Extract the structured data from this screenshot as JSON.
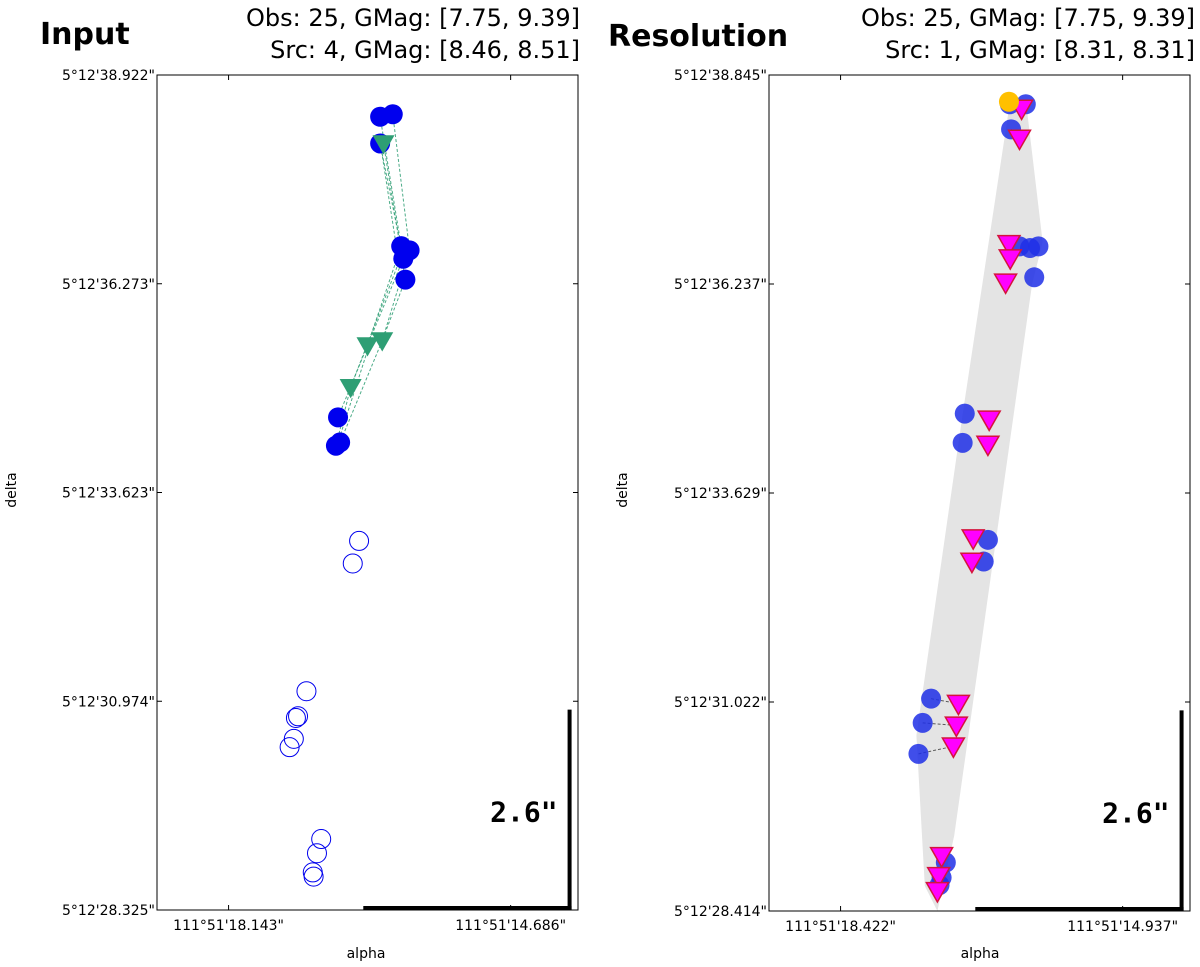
{
  "chart_data": [
    {
      "type": "scatter",
      "title": "Input",
      "header": [
        "Obs: 25, GMag: [7.75, 9.39]",
        "Src: 4, GMag: [8.46, 8.51]"
      ],
      "xlabel": "alpha",
      "ylabel": "delta",
      "xlim": [
        0,
        100
      ],
      "ylim": [
        0,
        100
      ],
      "x_tick_labels": [
        "111°51'18.143\"",
        "111°51'14.686\""
      ],
      "x_tick_values": [
        17,
        84
      ],
      "y_tick_labels": [
        "5°12'38.922\"",
        "5°12'36.273\"",
        "5°12'33.623\"",
        "5°12'30.974\"",
        "5°12'28.325\""
      ],
      "y_tick_values": [
        100,
        75,
        50,
        25,
        0
      ],
      "scale_label": "2.6\"",
      "scale_bar": {
        "x0": 49,
        "x1": 98,
        "y0": 0,
        "y1": 24
      },
      "shaded_region": null,
      "series": [
        {
          "name": "observations (filled)",
          "marker": "circle",
          "filled": true,
          "color": "#0000ee",
          "points": [
            [
              53,
              95
            ],
            [
              56,
              95.3
            ],
            [
              53,
              91.8
            ],
            [
              58,
              79.5
            ],
            [
              60,
              79
            ],
            [
              58.5,
              78
            ],
            [
              59,
              75.5
            ],
            [
              43,
              59
            ],
            [
              43.5,
              56
            ],
            [
              42.5,
              55.6
            ]
          ]
        },
        {
          "name": "observations (open)",
          "marker": "circle",
          "filled": false,
          "color": "#0000ee",
          "points": [
            [
              48,
              44.2
            ],
            [
              46.5,
              41.5
            ],
            [
              35.5,
              26.2
            ],
            [
              33.5,
              23.2
            ],
            [
              33,
              23
            ],
            [
              32.5,
              20.5
            ],
            [
              31.5,
              19.5
            ],
            [
              39,
              8.5
            ],
            [
              38,
              6.8
            ],
            [
              37,
              4.5
            ],
            [
              37.2,
              4
            ]
          ]
        },
        {
          "name": "sources",
          "marker": "triangle-down",
          "filled": true,
          "color": "#2e9e74",
          "points": [
            [
              53.8,
              91.8
            ],
            [
              50,
              67.6
            ],
            [
              53.5,
              68.2
            ],
            [
              46,
              62.6
            ]
          ]
        }
      ],
      "links": [
        {
          "from": [
            53,
            95
          ],
          "to": [
            58,
            79.5
          ]
        },
        {
          "from": [
            56,
            95.3
          ],
          "to": [
            60,
            79
          ]
        },
        {
          "from": [
            53,
            91.8
          ],
          "to": [
            58.5,
            78
          ]
        },
        {
          "from": [
            53.8,
            91.8
          ],
          "to": [
            59,
            75.5
          ]
        },
        {
          "from": [
            53,
            92
          ],
          "to": [
            57,
            79
          ]
        },
        {
          "from": [
            58,
            79.5
          ],
          "to": [
            50,
            67.6
          ]
        },
        {
          "from": [
            60,
            79
          ],
          "to": [
            53.5,
            68.2
          ]
        },
        {
          "from": [
            59,
            75.5
          ],
          "to": [
            53.5,
            68.2
          ]
        },
        {
          "from": [
            58.5,
            78
          ],
          "to": [
            50,
            67.6
          ]
        },
        {
          "from": [
            57,
            77
          ],
          "to": [
            46,
            62.6
          ]
        },
        {
          "from": [
            50,
            67.6
          ],
          "to": [
            43,
            59
          ]
        },
        {
          "from": [
            53.5,
            68.2
          ],
          "to": [
            43.5,
            56
          ]
        },
        {
          "from": [
            46,
            62.6
          ],
          "to": [
            42.5,
            55.6
          ]
        },
        {
          "from": [
            50,
            67
          ],
          "to": [
            43,
            56
          ]
        }
      ]
    },
    {
      "type": "scatter",
      "title": "Resolution",
      "header": [
        "Obs: 25, GMag: [7.75, 9.39]",
        "Src: 1, GMag: [8.31, 8.31]"
      ],
      "xlabel": "alpha",
      "ylabel": "delta",
      "xlim": [
        0,
        100
      ],
      "ylim": [
        0,
        100
      ],
      "x_tick_labels": [
        "111°51'18.422\"",
        "111°51'14.937\""
      ],
      "x_tick_values": [
        17,
        84
      ],
      "y_tick_labels": [
        "5°12'38.845\"",
        "5°12'36.237\"",
        "5°12'33.629\"",
        "5°12'31.022\"",
        "5°12'28.414\""
      ],
      "y_tick_values": [
        100,
        75,
        50,
        25,
        0
      ],
      "scale_label": "2.6\"",
      "scale_bar": {
        "x0": 49,
        "x1": 98,
        "y0": 0,
        "y1": 24
      },
      "shaded_region": [
        [
          57,
          96
        ],
        [
          61,
          97
        ],
        [
          65,
          80
        ],
        [
          62.5,
          75
        ],
        [
          44,
          9
        ],
        [
          40,
          0
        ],
        [
          37,
          3
        ],
        [
          35,
          21
        ],
        [
          46,
          59.5
        ]
      ],
      "series": [
        {
          "name": "observations",
          "marker": "circle",
          "filled": true,
          "color": "#1f2fe6",
          "points": [
            [
              57.2,
              96.5
            ],
            [
              61,
              96.5
            ],
            [
              57.5,
              93.5
            ],
            [
              59.5,
              79.5
            ],
            [
              62,
              79.3
            ],
            [
              64,
              79.5
            ],
            [
              63,
              75.8
            ],
            [
              46.5,
              59.5
            ],
            [
              46,
              56
            ],
            [
              52,
              44.4
            ],
            [
              51,
              41.8
            ],
            [
              38.5,
              25.4
            ],
            [
              36.5,
              22.5
            ],
            [
              35.5,
              18.8
            ],
            [
              42,
              5.8
            ],
            [
              41,
              4
            ],
            [
              40.5,
              3.1
            ]
          ]
        },
        {
          "name": "sources",
          "marker": "triangle-down",
          "filled": true,
          "color": "#ff00ff",
          "points": [
            [
              60,
              96
            ],
            [
              59.5,
              92.4
            ],
            [
              57,
              79.8
            ],
            [
              57.3,
              78.1
            ],
            [
              56.2,
              75.2
            ],
            [
              52.3,
              58.8
            ],
            [
              52,
              55.8
            ],
            [
              48.5,
              44.6
            ],
            [
              48.2,
              41.8
            ],
            [
              45,
              24.8
            ],
            [
              44.5,
              22.2
            ],
            [
              43.8,
              19.7
            ],
            [
              41,
              6.6
            ],
            [
              40.3,
              4.2
            ],
            [
              40,
              2.4
            ]
          ]
        },
        {
          "name": "highlight",
          "marker": "circle",
          "filled": true,
          "color": "#ffc000",
          "points": [
            [
              57,
              96.8
            ]
          ]
        }
      ],
      "links": [
        {
          "from": [
            57.5,
            93.5
          ],
          "to": [
            59.5,
            92.4
          ]
        },
        {
          "from": [
            36.5,
            22.5
          ],
          "to": [
            44.5,
            22.2
          ]
        },
        {
          "from": [
            35.5,
            18.8
          ],
          "to": [
            43.8,
            19.7
          ]
        },
        {
          "from": [
            38.5,
            25.4
          ],
          "to": [
            45,
            24.8
          ]
        }
      ]
    }
  ]
}
